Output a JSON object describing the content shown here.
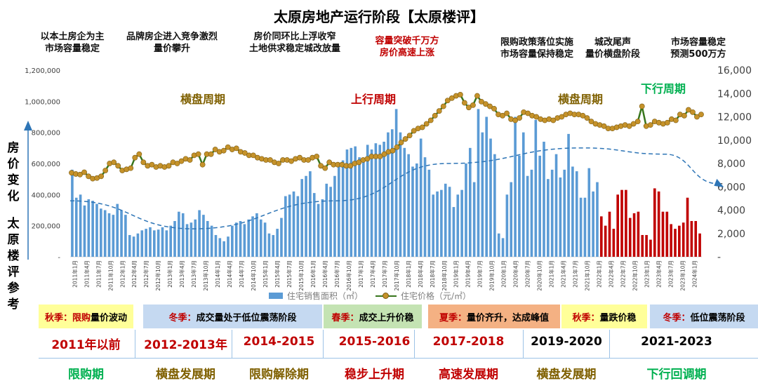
{
  "header": {
    "title": "太原房地产运行阶段【太原楼评】"
  },
  "annotations": [
    {
      "lines": [
        "以本土房企为主",
        "市场容量稳定"
      ],
      "color": "#111111"
    },
    {
      "lines": [
        "品牌房企进入竞争激烈",
        "量价攀升"
      ],
      "color": "#111111"
    },
    {
      "lines": [
        "房价同环比上浮收窄",
        "土地供求稳定城改放量"
      ],
      "color": "#111111"
    },
    {
      "lines": [
        "容量突破千万方",
        "房价高速上涨"
      ],
      "color": "#c00000"
    },
    {
      "lines": [
        "限购政策落位实施",
        "市场容量保持稳定"
      ],
      "color": "#111111"
    },
    {
      "lines": [
        "城改尾声",
        "量价横盘阶段"
      ],
      "color": "#111111"
    },
    {
      "lines": [
        "市场容量稳定",
        "预测500万方"
      ],
      "color": "#111111"
    }
  ],
  "phase_labels": [
    {
      "text": "横盘周期",
      "color": "#7f6000"
    },
    {
      "text": "上行周期",
      "color": "#c00000"
    },
    {
      "text": "横盘周期",
      "color": "#7f6000"
    },
    {
      "text": "下行周期",
      "color": "#00b050"
    }
  ],
  "side_label": {
    "top": [
      "房",
      "价",
      "变",
      "化"
    ],
    "bottom": [
      "太",
      "原",
      "楼",
      "评",
      "参",
      "考"
    ]
  },
  "seasons": [
    {
      "prefix": "秋季：",
      "red": "限购",
      "rest": "量价波动",
      "bg": "#ffff99"
    },
    {
      "prefix": "冬季：",
      "red": "",
      "rest": "成交量处于低位震荡阶段",
      "bg": "#c5d9f1"
    },
    {
      "prefix": "春季：",
      "red": "",
      "rest": "成交上升价稳",
      "bg": "#c4e3b3"
    },
    {
      "prefix": "夏季：",
      "red": "",
      "rest": "量价齐升，达成峰值",
      "bg": "#f4b183"
    },
    {
      "prefix": "秋季：",
      "red": "",
      "rest": "量跌价稳",
      "bg": "#ffff99"
    },
    {
      "prefix": "冬季：",
      "red": "",
      "rest": "低位震荡阶段",
      "bg": "#c5d9f1"
    }
  ],
  "year_ranges": [
    {
      "text": "2011年以前",
      "color": "#c00000"
    },
    {
      "text": "2012-2013年",
      "color": "#c00000"
    },
    {
      "text": "2014-2015",
      "color": "#c00000"
    },
    {
      "text": "2015-2016",
      "color": "#c00000"
    },
    {
      "text": "2017-2018",
      "color": "#c00000"
    },
    {
      "text": "2019-2020",
      "color": "#000000"
    },
    {
      "text": "2021-2023",
      "color": "#000000"
    }
  ],
  "periods": [
    {
      "text": "限购期",
      "color": "#00b050"
    },
    {
      "text": "横盘发展期",
      "color": "#7f6000"
    },
    {
      "text": "限购解除期",
      "color": "#7f6000"
    },
    {
      "text": "稳步上升期",
      "color": "#c00000"
    },
    {
      "text": "高速发展期",
      "color": "#c00000"
    },
    {
      "text": "横盘发展期",
      "color": "#7f6000"
    },
    {
      "text": "下行回调期",
      "color": "#00b050"
    }
  ],
  "chart_data": {
    "type": "bar+line",
    "categories_start": "2011-01",
    "x_tick_labels": [
      "2011年1月",
      "2011年4月",
      "2011年7月",
      "2011年10月",
      "2012年1月",
      "2012年4月",
      "2012年7月",
      "2012年10月",
      "2013年1月",
      "2013年4月",
      "2013年7月",
      "2013年10月",
      "2014年1月",
      "2014年4月",
      "2014年7月",
      "2014年10月",
      "2015年1月",
      "2015年4月",
      "2015年7月",
      "2015年10月",
      "2016年1月",
      "2016年4月",
      "2016年7月",
      "2016年10月",
      "2017年1月",
      "2017年4月",
      "2017年7月",
      "2017年10月",
      "2018年1月",
      "2018年4月",
      "2018年7月",
      "2018年10月",
      "2019年1月",
      "2019年4月",
      "2019年7月",
      "2019年10月",
      "2020年1月",
      "2020年4月",
      "2020年7月",
      "2020年10月",
      "2021年1月",
      "2021年4月",
      "2021年7月",
      "2021年10月",
      "2022年1月",
      "2022年4月",
      "2022年7月",
      "2022年10月",
      "2023年1月",
      "2023年4月",
      "2023年7月",
      "2023年10月",
      "2024年1月"
    ],
    "y_left": {
      "ticks": [
        "-",
        "200,000",
        "400,000",
        "600,000",
        "800,000",
        "1,000,000",
        "1,200,000"
      ],
      "range": [
        0,
        1200000
      ]
    },
    "y_right": {
      "ticks": [
        "-",
        "2,000",
        "4,000",
        "6,000",
        "8,000",
        "10,000",
        "12,000",
        "14,000",
        "16,000"
      ],
      "range": [
        0,
        16000
      ]
    },
    "colors": {
      "area_bar": "#5b9bd5",
      "area_bar_recent": "#c00000",
      "price_line": "#38761d",
      "price_marker": "#c5922a",
      "trend": "#2e75b6"
    },
    "series": [
      {
        "name": "住宅销售面积（㎡）",
        "kind": "bar",
        "values": [
          560000,
          380000,
          400000,
          330000,
          370000,
          360000,
          340000,
          310000,
          300000,
          280000,
          270000,
          340000,
          300000,
          270000,
          140000,
          130000,
          150000,
          170000,
          180000,
          190000,
          170000,
          175000,
          190000,
          170000,
          200000,
          230000,
          290000,
          280000,
          210000,
          220000,
          240000,
          300000,
          270000,
          230000,
          200000,
          140000,
          120000,
          100000,
          130000,
          200000,
          220000,
          230000,
          210000,
          240000,
          260000,
          280000,
          240000,
          220000,
          150000,
          140000,
          180000,
          250000,
          390000,
          400000,
          420000,
          390000,
          500000,
          520000,
          550000,
          410000,
          340000,
          370000,
          470000,
          450000,
          520000,
          600000,
          620000,
          690000,
          700000,
          710000,
          640000,
          620000,
          720000,
          690000,
          730000,
          720000,
          740000,
          800000,
          820000,
          950000,
          800000,
          700000,
          660000,
          580000,
          600000,
          760000,
          640000,
          560000,
          400000,
          420000,
          430000,
          470000,
          450000,
          320000,
          400000,
          430000,
          600000,
          700000,
          480000,
          950000,
          800000,
          900000,
          760000,
          660000,
          150000,
          120000,
          400000,
          480000,
          900000,
          650000,
          800000,
          520000,
          560000,
          880000,
          650000,
          740000,
          500000,
          560000,
          660000,
          510000,
          560000,
          790000,
          580000,
          550000,
          380000,
          380000,
          570000,
          420000,
          480000
        ],
        "recent_values": [
          260000,
          200000,
          290000,
          180000,
          400000,
          430000,
          430000,
          250000,
          280000,
          290000,
          140000,
          140000,
          110000,
          440000,
          420000,
          290000,
          290000,
          210000,
          180000,
          200000,
          220000,
          380000,
          230000,
          230000,
          150000
        ]
      },
      {
        "name": "住宅价格（元/㎡）",
        "kind": "line",
        "values": [
          7200,
          7100,
          7050,
          7250,
          6900,
          6700,
          6750,
          6900,
          7400,
          8000,
          8100,
          7800,
          7400,
          7500,
          7600,
          8500,
          8800,
          8100,
          7800,
          7900,
          7700,
          7800,
          7700,
          7800,
          8100,
          8000,
          8200,
          8400,
          8300,
          8700,
          8800,
          7900,
          8800,
          8800,
          9200,
          9000,
          9100,
          9400,
          9200,
          9300,
          9000,
          8900,
          8700,
          8700,
          8500,
          8400,
          8300,
          8300,
          8100,
          8000,
          8300,
          8300,
          8200,
          8400,
          8500,
          8300,
          8300,
          8500,
          8600,
          7800,
          7600,
          8100,
          7900,
          7900,
          7900,
          7800,
          7800,
          8000,
          8100,
          8300,
          8400,
          8600,
          8600,
          8600,
          8800,
          9000,
          9100,
          9400,
          9800,
          10100,
          10400,
          10800,
          11000,
          11100,
          11400,
          11700,
          12100,
          12500,
          12900,
          13400,
          13600,
          13800,
          13900,
          13200,
          12800,
          13000,
          13800,
          13300,
          13100,
          12900,
          12700,
          12200,
          12100,
          12300,
          11800,
          11700,
          11900,
          12400,
          12300,
          12100,
          12000,
          11800,
          11700,
          11800,
          11700,
          11900,
          12000,
          12200,
          12300,
          12200,
          12200,
          12100,
          11900,
          11600,
          11400,
          11300,
          11200,
          11000,
          11000,
          11100,
          11200,
          11300,
          11200,
          11400,
          11600,
          12900,
          11200,
          11300,
          11600,
          11500,
          11400,
          11500,
          11800,
          11700,
          12200,
          12100,
          12600,
          12400,
          12000,
          12200
        ]
      },
      {
        "name": "trend",
        "kind": "dashed",
        "values": [
          {
            "x": 0,
            "y": 360000
          },
          {
            "x": 30,
            "y": 180000
          },
          {
            "x": 65,
            "y": 360000
          },
          {
            "x": 92,
            "y": 600000
          },
          {
            "x": 125,
            "y": 700000
          },
          {
            "x": 145,
            "y": 660000
          },
          {
            "x": 158,
            "y": 470000
          }
        ]
      }
    ]
  }
}
